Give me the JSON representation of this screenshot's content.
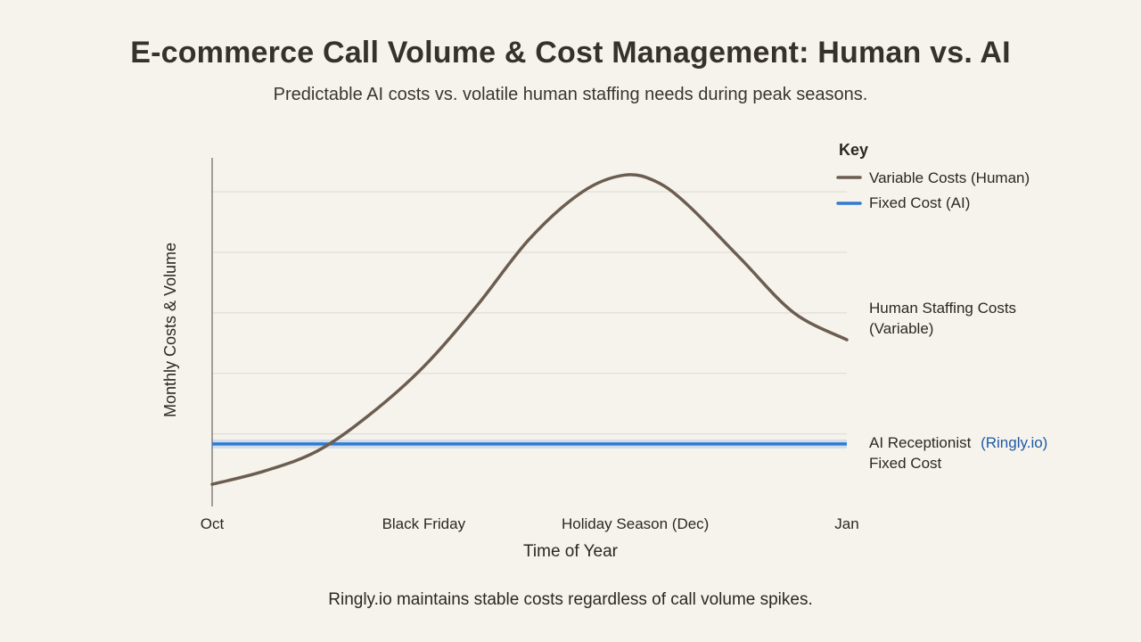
{
  "title": "E-commerce Call Volume & Cost Management: Human vs. AI",
  "subtitle": "Predictable AI costs vs. volatile human staffing needs during peak seasons.",
  "footer": "Ringly.io maintains stable costs regardless of call volume spikes.",
  "colors": {
    "human": "#6b5d50",
    "ai": "#2f7bd3",
    "grid": "#dcd8d1",
    "axis": "#6a6560",
    "highlight": "#1d5aa6"
  },
  "chart_data": {
    "type": "line",
    "title": "E-commerce Call Volume & Cost Management: Human vs. AI",
    "xlabel": "Time of Year",
    "ylabel": "Monthly Costs & Volume",
    "xlim": [
      0,
      3
    ],
    "ylim": [
      0,
      100
    ],
    "x_ticks": [
      {
        "x": 0,
        "label": "Oct"
      },
      {
        "x": 1,
        "label": "Black Friday"
      },
      {
        "x": 2,
        "label": "Holiday Season (Dec)"
      },
      {
        "x": 3,
        "label": "Jan"
      }
    ],
    "grid": true,
    "legend_title": "Key",
    "legend_position": "top-right",
    "series": [
      {
        "name": "Variable Costs (Human)",
        "x": [
          0,
          0.25,
          0.5,
          0.75,
          1.0,
          1.25,
          1.5,
          1.75,
          1.95,
          2.1,
          2.25,
          2.5,
          2.75,
          3.0
        ],
        "y": [
          5,
          9,
          15,
          26,
          40,
          58,
          78,
          92,
          97,
          95,
          88,
          72,
          56,
          48
        ]
      },
      {
        "name": "Fixed Cost (AI)",
        "x": [
          0,
          3
        ],
        "y": [
          17,
          17
        ]
      }
    ],
    "annotations": {
      "human_line1": "Human Staffing Costs",
      "human_line2": "(Variable)",
      "ai_prefix": "AI Receptionist",
      "ai_brand": "(Ringly.io)",
      "ai_line2": "Fixed Cost"
    }
  }
}
